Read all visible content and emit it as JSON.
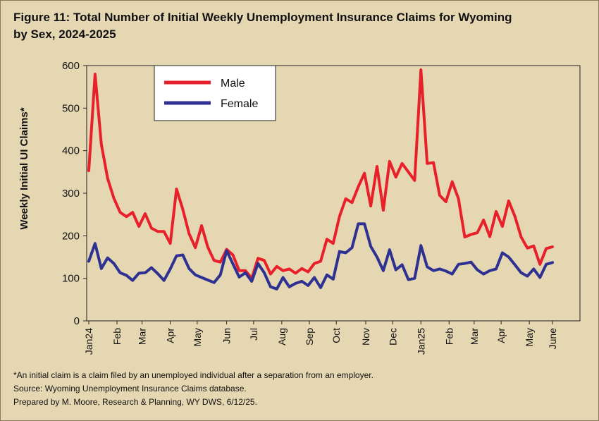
{
  "title_line1": "Figure 11: Total Number of Initial Weekly Unemployment Insurance Claims for Wyoming",
  "title_line2": "by Sex, 2024-2025",
  "footnotes": [
    "*An initial claim is a claim filed by an unemployed individual after a separation from an employer.",
    "Source: Wyoming Unemployment Insurance Claims database.",
    "Prepared by M. Moore, Research & Planning, WY DWS, 6/12/25."
  ],
  "colors": {
    "background": "#e6d7b3",
    "male": "#e8202a",
    "female": "#2e3192",
    "legend_bg": "#ffffff"
  },
  "chart_data": {
    "type": "line",
    "title": "Figure 11: Total Number of Initial Weekly Unemployment Insurance Claims for Wyoming by Sex, 2024-2025",
    "ylabel": "Weekly Initial UI Claims*",
    "xlabel": "",
    "ylim": [
      0,
      600
    ],
    "yticks": [
      0,
      100,
      200,
      300,
      400,
      500,
      600
    ],
    "grid": false,
    "legend_position": "top-left",
    "week_count": 75,
    "x_ticks": [
      {
        "label": "Jan24",
        "week": 0
      },
      {
        "label": "Feb",
        "week": 4.5
      },
      {
        "label": "Mar",
        "week": 8.5
      },
      {
        "label": "Apr",
        "week": 13
      },
      {
        "label": "May",
        "week": 17.3
      },
      {
        "label": "Jun",
        "week": 22
      },
      {
        "label": "Jul",
        "week": 26.3
      },
      {
        "label": "Aug",
        "week": 30.8
      },
      {
        "label": "Sep",
        "week": 35.2
      },
      {
        "label": "Oct",
        "week": 39.5
      },
      {
        "label": "Nov",
        "week": 44.2
      },
      {
        "label": "Dec",
        "week": 48.5
      },
      {
        "label": "Jan25",
        "week": 53
      },
      {
        "label": "Feb",
        "week": 57.5
      },
      {
        "label": "Mar",
        "week": 61.5
      },
      {
        "label": "Apr",
        "week": 65.8
      },
      {
        "label": "May",
        "week": 70.3
      },
      {
        "label": "June",
        "week": 74
      }
    ],
    "series": [
      {
        "name": "Male",
        "values": [
          353,
          580,
          415,
          335,
          288,
          255,
          245,
          255,
          222,
          252,
          218,
          210,
          210,
          182,
          310,
          262,
          205,
          172,
          224,
          173,
          142,
          138,
          168,
          155,
          118,
          118,
          100,
          147,
          142,
          110,
          128,
          118,
          122,
          112,
          123,
          115,
          135,
          140,
          192,
          182,
          245,
          287,
          278,
          315,
          347,
          270,
          363,
          260,
          375,
          338,
          370,
          350,
          330,
          590,
          370,
          372,
          295,
          280,
          327,
          287,
          197,
          203,
          207,
          237,
          198,
          257,
          222,
          282,
          246,
          197,
          171,
          176,
          133,
          170,
          174
        ]
      },
      {
        "name": "Female",
        "values": [
          140,
          182,
          123,
          148,
          135,
          113,
          107,
          95,
          112,
          113,
          125,
          111,
          95,
          122,
          153,
          155,
          123,
          108,
          102,
          96,
          90,
          108,
          165,
          134,
          103,
          113,
          93,
          135,
          113,
          80,
          75,
          102,
          80,
          88,
          93,
          83,
          102,
          78,
          108,
          98,
          163,
          160,
          172,
          228,
          228,
          175,
          150,
          118,
          167,
          120,
          132,
          97,
          100,
          177,
          127,
          118,
          122,
          117,
          110,
          133,
          135,
          138,
          120,
          110,
          118,
          122,
          160,
          150,
          132,
          113,
          105,
          122,
          102,
          133,
          137
        ]
      }
    ]
  }
}
